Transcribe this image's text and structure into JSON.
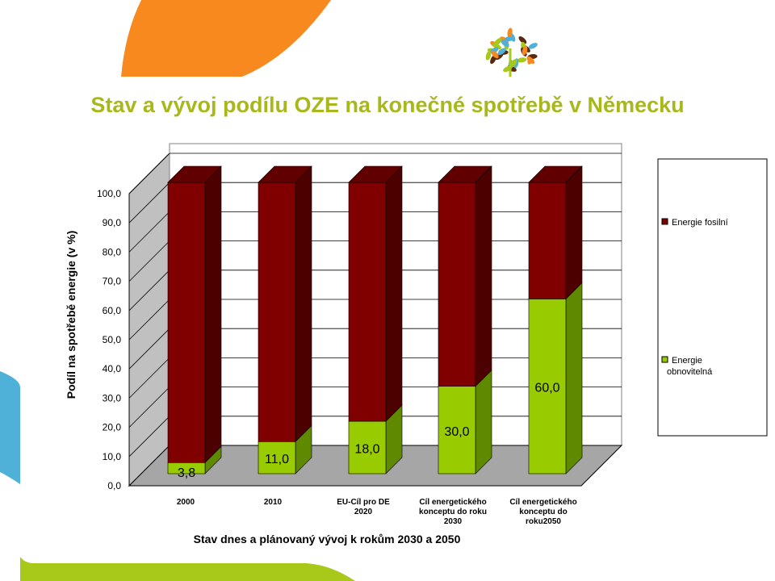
{
  "title": "Stav a vývoj podílu OZE na konečné spotřebě v Německu",
  "chart_data": {
    "type": "bar",
    "stacked": true,
    "title": "Stav a vývoj podílu OZE na konečné spotřebě v Německu",
    "xlabel": "Stav dnes a plánovaný vývoj  k rokům 2030 a 2050",
    "ylabel": "Podíl na spotřebě energie (v %)",
    "ylim": [
      0,
      100
    ],
    "yticks": [
      "0,0",
      "10,0",
      "20,0",
      "30,0",
      "40,0",
      "50,0",
      "60,0",
      "70,0",
      "80,0",
      "90,0",
      "100,0"
    ],
    "categories": [
      [
        "2000"
      ],
      [
        "2010"
      ],
      [
        "EU-Cíl pro DE",
        "2020"
      ],
      [
        "Cíl energetického",
        "konceptu do roku",
        "2030"
      ],
      [
        "Cíl energetického",
        "konceptu do",
        "roku2050"
      ]
    ],
    "series": [
      {
        "name": "Energie obnovitelná",
        "color": "#99cc00",
        "values": [
          3.8,
          11.0,
          18.0,
          30.0,
          60.0
        ],
        "labels": [
          "3,8",
          "11,0",
          "18,0",
          "30,0",
          "60,0"
        ]
      },
      {
        "name": "Energie fosilní",
        "color": "#800000",
        "values": [
          96.2,
          89.0,
          82.0,
          70.0,
          40.0
        ]
      }
    ],
    "legend": {
      "position": "right",
      "entries": [
        "Energie fosilní",
        "Energie obnovitelná"
      ]
    },
    "grid": true
  }
}
